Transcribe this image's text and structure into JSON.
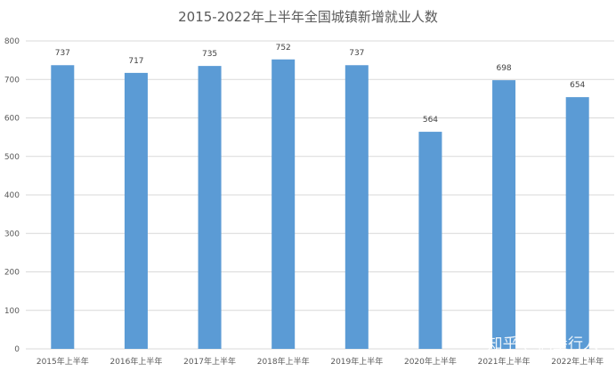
{
  "chart_data": {
    "type": "bar",
    "title": "2015-2022年上半年全国城镇新增就业人数",
    "categories": [
      "2015年上半年",
      "2016年上半年",
      "2017年上半年",
      "2018年上半年",
      "2019年上半年",
      "2020年上半年",
      "2021年上半年",
      "2022年上半年"
    ],
    "values": [
      737,
      717,
      735,
      752,
      737,
      564,
      698,
      654
    ],
    "ylim": [
      0,
      800
    ],
    "yticks": [
      0,
      100,
      200,
      300,
      400,
      500,
      600,
      700,
      800
    ],
    "grid": true,
    "bar_color": "#5b9bd5",
    "data_labels": true
  },
  "watermark": "知乎 @高堡行人"
}
